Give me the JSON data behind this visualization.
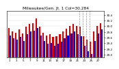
{
  "title": "Milwaukee/Gen. Jt. 1 Col=30.284",
  "days": [
    "1",
    "2",
    "3",
    "4",
    "5",
    "6",
    "7",
    "8",
    "9",
    "10",
    "11",
    "12",
    "13",
    "14",
    "15",
    "16",
    "17",
    "18",
    "19",
    "20",
    "21",
    "22",
    "23",
    "24",
    "25",
    "26",
    "27",
    "28"
  ],
  "highs": [
    29.95,
    29.82,
    29.78,
    29.88,
    29.75,
    29.98,
    30.08,
    30.12,
    30.28,
    29.98,
    29.78,
    29.68,
    29.72,
    29.62,
    29.65,
    29.72,
    29.82,
    29.92,
    30.02,
    30.08,
    30.02,
    29.98,
    29.65,
    29.52,
    29.45,
    29.82,
    30.02,
    30.12
  ],
  "lows": [
    29.68,
    29.58,
    29.52,
    29.62,
    29.48,
    29.72,
    29.82,
    29.85,
    29.95,
    29.68,
    29.48,
    29.38,
    29.42,
    29.32,
    29.38,
    29.45,
    29.58,
    29.68,
    29.75,
    29.82,
    29.72,
    29.65,
    29.32,
    29.12,
    29.02,
    29.48,
    29.75,
    29.88
  ],
  "high_color": "#dd0000",
  "low_color": "#0000dd",
  "background_color": "#ffffff",
  "plot_bg_color": "#ffffff",
  "ylim_min": 28.9,
  "ylim_max": 30.55,
  "yticks": [
    29.0,
    29.2,
    29.4,
    29.6,
    29.8,
    30.0,
    30.2,
    30.4
  ],
  "ytick_labels": [
    "29.0",
    "29.2",
    "29.4",
    "29.6",
    "29.8",
    "30.0",
    "30.2",
    "30.4"
  ],
  "dashed_vline_positions": [
    20.5,
    21.5,
    22.5,
    23.5
  ],
  "title_fontsize": 4.2,
  "tick_fontsize": 3.0,
  "bar_width": 0.42,
  "n_bars": 28
}
